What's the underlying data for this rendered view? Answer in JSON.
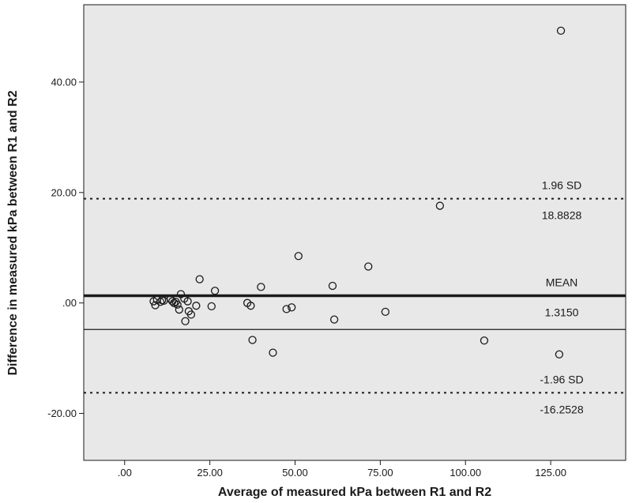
{
  "chart_data": {
    "type": "scatter",
    "xlabel": "Average of measured kPa between R1 and R2",
    "ylabel": "Difference in measured kPa between R1 and R2",
    "xlim": [
      -12,
      147
    ],
    "ylim": [
      -28.5,
      54
    ],
    "x_ticks": [
      0,
      25,
      50,
      75,
      100,
      125
    ],
    "x_tick_labels": [
      ".00",
      "25.00",
      "50.00",
      "75.00",
      "100.00",
      "125.00"
    ],
    "y_ticks": [
      -20,
      0,
      20,
      40
    ],
    "y_tick_labels": [
      "-20.00",
      ".00",
      "20.00",
      "40.00"
    ],
    "grid": false,
    "colors": {
      "plot_background": "#e8e8e8",
      "marker": "#1a1a1a",
      "line": "#1a1a1a"
    },
    "points": [
      {
        "x": 8.5,
        "y": 0.3
      },
      {
        "x": 9.0,
        "y": -0.4
      },
      {
        "x": 9.5,
        "y": 0.6
      },
      {
        "x": 10.5,
        "y": 0.2
      },
      {
        "x": 11.0,
        "y": 0.5
      },
      {
        "x": 11.5,
        "y": 0.4
      },
      {
        "x": 13.5,
        "y": 0.7
      },
      {
        "x": 14.0,
        "y": 0.3
      },
      {
        "x": 14.5,
        "y": 0.0
      },
      {
        "x": 15.0,
        "y": 0.2
      },
      {
        "x": 15.5,
        "y": -0.3
      },
      {
        "x": 16.0,
        "y": -1.2
      },
      {
        "x": 16.5,
        "y": 1.6
      },
      {
        "x": 17.5,
        "y": 0.8
      },
      {
        "x": 17.8,
        "y": -3.3
      },
      {
        "x": 18.5,
        "y": 0.3
      },
      {
        "x": 18.8,
        "y": -1.5
      },
      {
        "x": 19.5,
        "y": -2.1
      },
      {
        "x": 21.0,
        "y": -0.5
      },
      {
        "x": 22.0,
        "y": 4.3
      },
      {
        "x": 25.5,
        "y": -0.6
      },
      {
        "x": 26.5,
        "y": 2.2
      },
      {
        "x": 36.0,
        "y": 0.0
      },
      {
        "x": 37.0,
        "y": -0.5
      },
      {
        "x": 37.5,
        "y": -6.7
      },
      {
        "x": 40.0,
        "y": 2.9
      },
      {
        "x": 43.5,
        "y": -9.0
      },
      {
        "x": 47.5,
        "y": -1.1
      },
      {
        "x": 49.0,
        "y": -0.8
      },
      {
        "x": 51.0,
        "y": 8.5
      },
      {
        "x": 61.0,
        "y": 3.1
      },
      {
        "x": 61.5,
        "y": -3.0
      },
      {
        "x": 71.5,
        "y": 6.6
      },
      {
        "x": 76.5,
        "y": -1.6
      },
      {
        "x": 92.5,
        "y": 17.6
      },
      {
        "x": 105.5,
        "y": -6.8
      },
      {
        "x": 127.5,
        "y": -9.3
      },
      {
        "x": 128.0,
        "y": 49.3
      }
    ],
    "reference_lines": [
      {
        "id": "upper",
        "y": 18.8828,
        "style": "dotted",
        "label_above": "1.96 SD",
        "label_below": "18.8828"
      },
      {
        "id": "mean",
        "y": 1.315,
        "style": "thick",
        "label_above": "MEAN",
        "label_below": "1.3150"
      },
      {
        "id": "lower",
        "y": -16.2528,
        "style": "dotted",
        "label_above": "-1.96 SD",
        "label_below": "-16.2528"
      },
      {
        "id": "fit",
        "y": -4.8,
        "style": "thin"
      }
    ]
  }
}
